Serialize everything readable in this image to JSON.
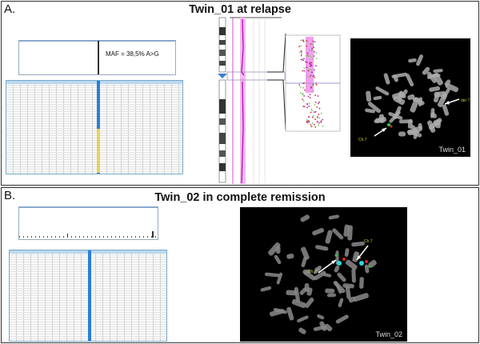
{
  "panel_a": {
    "label": "A.",
    "title": "Twin_01 at relapse",
    "maf_annotation": "MAF = 38,5% A>G",
    "fish": {
      "sample_label": "Twin_01",
      "labels": [
        "der 7",
        "Ch.7"
      ]
    }
  },
  "panel_b": {
    "label": "B.",
    "title": "Twin_02 in complete remission",
    "fish": {
      "sample_label": "Twin_02",
      "labels": [
        "Ch.7",
        "Ch.7"
      ]
    }
  },
  "colors": {
    "highlight_column": "#2a7fd4",
    "variant_cells": "#e8d25a",
    "copy_number_band": "#e070e0",
    "fish_background": "#000000"
  }
}
